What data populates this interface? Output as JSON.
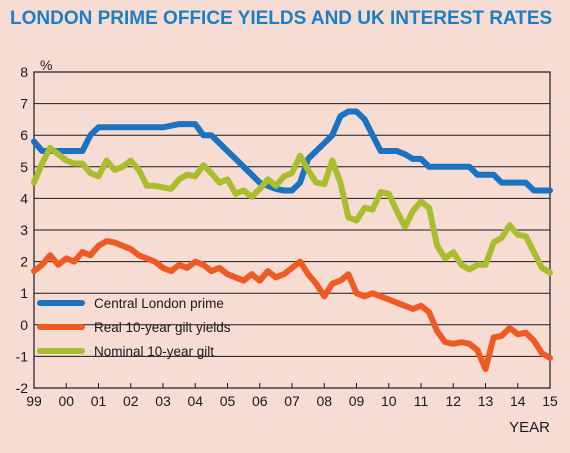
{
  "colors": {
    "background": "#f6dcd2",
    "title": "#1c7fc3",
    "grid": "#1a1a1a",
    "frame": "#1a1a1a"
  },
  "chart_data": {
    "type": "line",
    "title": "LONDON PRIME OFFICE YIELDS AND UK INTEREST RATES",
    "ylabel": "%",
    "xlabel": "YEAR",
    "ylim": [
      -2,
      8
    ],
    "xlim": [
      1999,
      2015
    ],
    "yticks": [
      "8",
      "7",
      "6",
      "5",
      "4",
      "3",
      "2",
      "1",
      "0",
      "-1",
      "-2"
    ],
    "ytick_values": [
      8,
      7,
      6,
      5,
      4,
      3,
      2,
      1,
      0,
      -1,
      -2
    ],
    "xticks": [
      "99",
      "00",
      "01",
      "02",
      "03",
      "04",
      "05",
      "06",
      "07",
      "08",
      "09",
      "10",
      "11",
      "12",
      "13",
      "14",
      "15"
    ],
    "xtick_values": [
      1999,
      2000,
      2001,
      2002,
      2003,
      2004,
      2005,
      2006,
      2007,
      2008,
      2009,
      2010,
      2011,
      2012,
      2013,
      2014,
      2015
    ],
    "grid": "horizontal",
    "legend_position": "bottom-left",
    "series": [
      {
        "name": "Central London prime",
        "color": "#1a73c2",
        "x": [
          1999.0,
          1999.25,
          1999.5,
          2000.0,
          2000.5,
          2000.75,
          2001.0,
          2001.25,
          2001.5,
          2002.0,
          2002.5,
          2002.75,
          2003.0,
          2003.5,
          2003.75,
          2004.0,
          2004.25,
          2004.5,
          2004.75,
          2005.0,
          2005.25,
          2005.5,
          2005.75,
          2006.0,
          2006.25,
          2006.5,
          2006.75,
          2007.0,
          2007.25,
          2007.5,
          2007.75,
          2008.0,
          2008.25,
          2008.5,
          2008.75,
          2009.0,
          2009.25,
          2009.5,
          2009.75,
          2010.0,
          2010.25,
          2010.5,
          2010.75,
          2011.0,
          2011.25,
          2011.5,
          2011.75,
          2012.0,
          2012.5,
          2012.75,
          2013.0,
          2013.25,
          2013.5,
          2013.75,
          2014.0,
          2014.25,
          2014.5,
          2014.75,
          2015.0
        ],
        "y": [
          5.8,
          5.5,
          5.5,
          5.5,
          5.5,
          6.0,
          6.25,
          6.25,
          6.25,
          6.25,
          6.25,
          6.25,
          6.25,
          6.35,
          6.35,
          6.35,
          6.0,
          6.0,
          5.75,
          5.5,
          5.25,
          5.0,
          4.75,
          4.5,
          4.4,
          4.3,
          4.25,
          4.25,
          4.5,
          5.25,
          5.5,
          5.75,
          6.0,
          6.6,
          6.75,
          6.75,
          6.5,
          6.0,
          5.5,
          5.5,
          5.5,
          5.4,
          5.25,
          5.25,
          5.0,
          5.0,
          5.0,
          5.0,
          5.0,
          4.75,
          4.75,
          4.75,
          4.5,
          4.5,
          4.5,
          4.5,
          4.25,
          4.25,
          4.25
        ]
      },
      {
        "name": "Real 10-year gilt yields",
        "color": "#ee5a24",
        "x": [
          1999.0,
          1999.25,
          1999.5,
          1999.75,
          2000.0,
          2000.25,
          2000.5,
          2000.75,
          2001.0,
          2001.25,
          2001.5,
          2001.75,
          2002.0,
          2002.25,
          2002.5,
          2002.75,
          2003.0,
          2003.25,
          2003.5,
          2003.75,
          2004.0,
          2004.25,
          2004.5,
          2004.75,
          2005.0,
          2005.25,
          2005.5,
          2005.75,
          2006.0,
          2006.25,
          2006.5,
          2006.75,
          2007.0,
          2007.25,
          2007.5,
          2007.75,
          2008.0,
          2008.25,
          2008.5,
          2008.75,
          2009.0,
          2009.25,
          2009.5,
          2009.75,
          2010.0,
          2010.25,
          2010.5,
          2010.75,
          2011.0,
          2011.25,
          2011.5,
          2011.75,
          2012.0,
          2012.25,
          2012.5,
          2012.75,
          2013.0,
          2013.25,
          2013.5,
          2013.75,
          2014.0,
          2014.25,
          2014.5,
          2014.75,
          2015.0
        ],
        "y": [
          1.7,
          1.9,
          2.2,
          1.9,
          2.1,
          2.0,
          2.3,
          2.2,
          2.5,
          2.65,
          2.6,
          2.5,
          2.4,
          2.2,
          2.1,
          2.0,
          1.8,
          1.7,
          1.9,
          1.8,
          2.0,
          1.9,
          1.7,
          1.8,
          1.6,
          1.5,
          1.4,
          1.6,
          1.4,
          1.7,
          1.5,
          1.6,
          1.8,
          2.0,
          1.6,
          1.3,
          0.9,
          1.3,
          1.4,
          1.6,
          1.0,
          0.9,
          1.0,
          0.9,
          0.8,
          0.7,
          0.6,
          0.5,
          0.6,
          0.4,
          -0.2,
          -0.55,
          -0.6,
          -0.55,
          -0.6,
          -0.8,
          -1.4,
          -0.4,
          -0.35,
          -0.1,
          -0.3,
          -0.25,
          -0.5,
          -0.9,
          -1.05
        ]
      },
      {
        "name": "Nominal 10-year gilt",
        "color": "#a8be2e",
        "x": [
          1999.0,
          1999.25,
          1999.5,
          1999.75,
          2000.0,
          2000.25,
          2000.5,
          2000.75,
          2001.0,
          2001.25,
          2001.5,
          2001.75,
          2002.0,
          2002.25,
          2002.5,
          2002.75,
          2003.0,
          2003.25,
          2003.5,
          2003.75,
          2004.0,
          2004.25,
          2004.5,
          2004.75,
          2005.0,
          2005.25,
          2005.5,
          2005.75,
          2006.0,
          2006.25,
          2006.5,
          2006.75,
          2007.0,
          2007.25,
          2007.5,
          2007.75,
          2008.0,
          2008.25,
          2008.5,
          2008.75,
          2009.0,
          2009.25,
          2009.5,
          2009.75,
          2010.0,
          2010.25,
          2010.5,
          2010.75,
          2011.0,
          2011.25,
          2011.5,
          2011.75,
          2012.0,
          2012.25,
          2012.5,
          2012.75,
          2013.0,
          2013.25,
          2013.5,
          2013.75,
          2014.0,
          2014.25,
          2014.5,
          2014.75,
          2015.0
        ],
        "y": [
          4.5,
          5.1,
          5.6,
          5.4,
          5.2,
          5.1,
          5.1,
          4.8,
          4.7,
          5.2,
          4.9,
          5.0,
          5.2,
          4.9,
          4.4,
          4.4,
          4.35,
          4.3,
          4.6,
          4.75,
          4.7,
          5.05,
          4.8,
          4.5,
          4.6,
          4.15,
          4.25,
          4.05,
          4.3,
          4.6,
          4.4,
          4.7,
          4.8,
          5.35,
          4.9,
          4.5,
          4.45,
          5.2,
          4.5,
          3.4,
          3.3,
          3.7,
          3.65,
          4.2,
          4.15,
          3.6,
          3.1,
          3.6,
          3.9,
          3.7,
          2.5,
          2.1,
          2.3,
          1.9,
          1.75,
          1.9,
          1.9,
          2.6,
          2.75,
          3.15,
          2.85,
          2.8,
          2.3,
          1.8,
          1.65
        ]
      }
    ]
  }
}
